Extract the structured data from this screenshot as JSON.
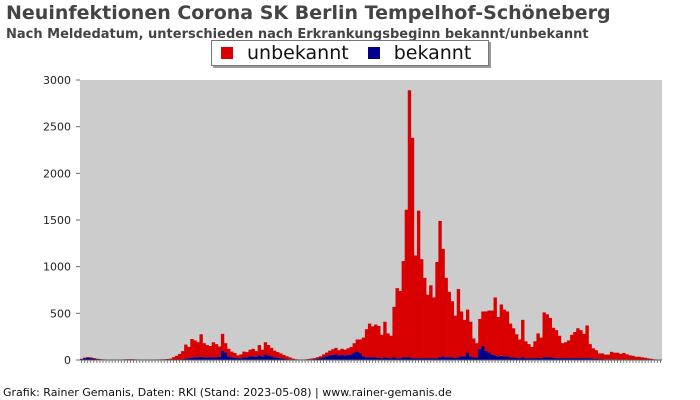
{
  "chart_data": {
    "type": "bar",
    "stacked": true,
    "title": "Neuinfektionen Corona SK Berlin Tempelhof-Schöneberg",
    "subtitle": "Nach Meldedatum, unterschieden nach Erkrankungsbeginn bekannt/unbekannt",
    "ylim": [
      0,
      3000
    ],
    "yticks": [
      0,
      500,
      1000,
      1500,
      2000,
      2500,
      3000
    ],
    "grid": false,
    "legend_position": "top-center",
    "series": [
      {
        "name": "unbekannt",
        "color": "#d80000",
        "values": [
          3,
          5,
          6,
          8,
          6,
          4,
          3,
          2,
          1,
          1,
          1,
          1,
          2,
          2,
          3,
          4,
          4,
          3,
          2,
          1,
          1,
          1,
          1,
          2,
          2,
          3,
          4,
          5,
          8,
          10,
          25,
          40,
          60,
          85,
          150,
          120,
          200,
          180,
          160,
          240,
          150,
          130,
          120,
          160,
          140,
          110,
          180,
          100,
          80,
          60,
          50,
          30,
          40,
          60,
          55,
          70,
          80,
          60,
          110,
          70,
          130,
          110,
          90,
          70,
          60,
          50,
          40,
          30,
          20,
          10,
          5,
          3,
          2,
          3,
          5,
          8,
          10,
          15,
          20,
          30,
          40,
          50,
          60,
          70,
          55,
          65,
          60,
          70,
          80,
          100,
          130,
          150,
          200,
          300,
          360,
          330,
          350,
          340,
          250,
          380,
          260,
          240,
          540,
          750,
          720,
          1030,
          1580,
          2860,
          2360,
          1100,
          1580,
          1060,
          860,
          680,
          780,
          650,
          1030,
          1460,
          1150,
          850,
          700,
          600,
          450,
          730,
          480,
          390,
          460,
          370,
          200,
          150,
          320,
          370,
          420,
          450,
          470,
          620,
          420,
          550,
          500,
          480,
          360,
          310,
          250,
          200,
          400,
          180,
          150,
          120,
          180,
          260,
          220,
          480,
          460,
          420,
          320,
          300,
          240,
          160,
          170,
          190,
          250,
          280,
          320,
          300,
          260,
          350,
          150,
          110,
          90,
          60,
          60,
          50,
          50,
          80,
          70,
          70,
          60,
          70,
          55,
          45,
          40,
          30,
          30,
          25,
          20,
          15,
          10,
          5,
          3,
          2
        ]
      },
      {
        "name": "bekannt",
        "color": "#00008b",
        "values": [
          10,
          20,
          25,
          20,
          15,
          10,
          8,
          5,
          3,
          2,
          2,
          2,
          3,
          3,
          4,
          4,
          5,
          5,
          4,
          3,
          2,
          2,
          2,
          2,
          2,
          3,
          3,
          3,
          3,
          4,
          5,
          5,
          5,
          10,
          15,
          20,
          25,
          30,
          30,
          35,
          30,
          30,
          30,
          30,
          30,
          35,
          100,
          80,
          40,
          30,
          25,
          20,
          20,
          30,
          30,
          40,
          40,
          35,
          50,
          40,
          60,
          50,
          40,
          30,
          25,
          20,
          15,
          10,
          8,
          5,
          3,
          2,
          2,
          3,
          5,
          8,
          10,
          15,
          20,
          30,
          40,
          50,
          55,
          60,
          50,
          55,
          50,
          55,
          60,
          80,
          90,
          70,
          40,
          30,
          30,
          30,
          30,
          25,
          20,
          30,
          25,
          20,
          30,
          20,
          20,
          30,
          30,
          30,
          20,
          20,
          20,
          20,
          20,
          20,
          20,
          20,
          20,
          30,
          40,
          30,
          30,
          30,
          25,
          30,
          40,
          40,
          80,
          40,
          30,
          30,
          120,
          150,
          100,
          80,
          60,
          50,
          40,
          45,
          40,
          40,
          30,
          30,
          25,
          20,
          30,
          20,
          20,
          20,
          20,
          25,
          20,
          30,
          30,
          30,
          25,
          20,
          20,
          20,
          20,
          20,
          20,
          20,
          20,
          20,
          20,
          20,
          20,
          15,
          15,
          10,
          10,
          8,
          8,
          8,
          8,
          8,
          6,
          6,
          6,
          5,
          5,
          5,
          5,
          4,
          4,
          3,
          3,
          2,
          2,
          1
        ]
      }
    ]
  },
  "footer": "Grafik: Rainer Gemanis, Daten: RKI (Stand: 2023-05-08) | www.rainer-gemanis.de"
}
